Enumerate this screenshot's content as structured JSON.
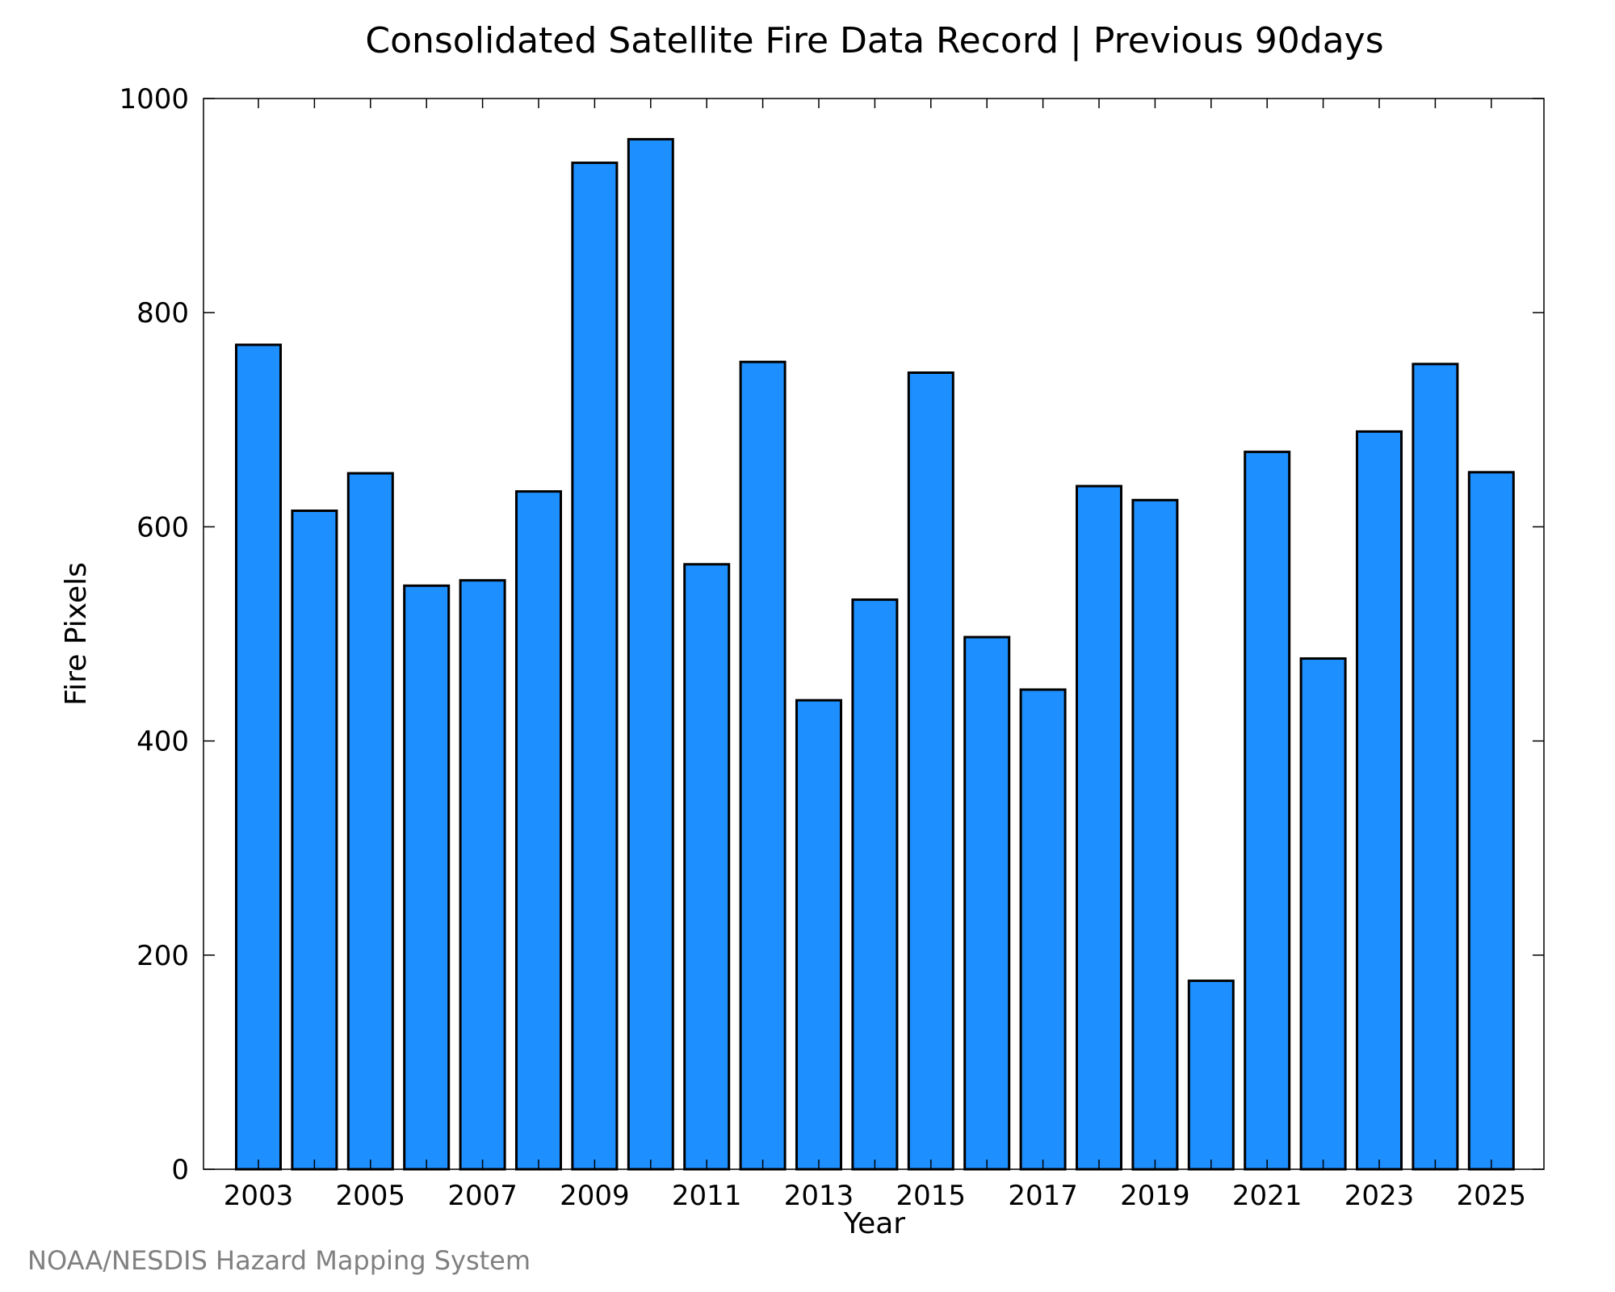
{
  "chart_data": {
    "type": "bar",
    "title": "Consolidated Satellite Fire Data Record | Previous 90days",
    "xlabel": "Year",
    "ylabel": "Fire Pixels",
    "categories": [
      "2003",
      "2004",
      "2005",
      "2006",
      "2007",
      "2008",
      "2009",
      "2010",
      "2011",
      "2012",
      "2013",
      "2014",
      "2015",
      "2016",
      "2017",
      "2018",
      "2019",
      "2020",
      "2021",
      "2022",
      "2023",
      "2024",
      "2025"
    ],
    "values": [
      770,
      615,
      650,
      545,
      550,
      633,
      940,
      962,
      565,
      754,
      438,
      532,
      744,
      497,
      448,
      638,
      625,
      176,
      670,
      477,
      689,
      752,
      651
    ],
    "x_tick_labels": [
      "2003",
      "2005",
      "2007",
      "2009",
      "2011",
      "2013",
      "2015",
      "2017",
      "2019",
      "2021",
      "2023",
      "2025"
    ],
    "y_ticks": [
      0,
      200,
      400,
      600,
      800,
      1000
    ],
    "y_tick_labels": [
      "0",
      "200",
      "400",
      "600",
      "800",
      "1000"
    ],
    "ylim": [
      0,
      1000
    ],
    "grid": false,
    "bar_color": "#1e8fff",
    "bar_edge_color": "#000000"
  },
  "credit": "NOAA/NESDIS Hazard Mapping System"
}
